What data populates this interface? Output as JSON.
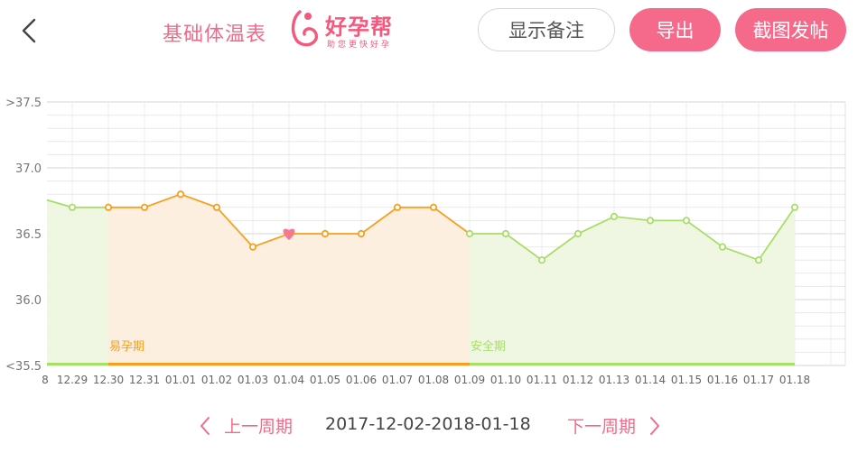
{
  "header": {
    "title": "基础体温表",
    "brand_name": "好孕帮",
    "brand_slogan": "助您更快好孕",
    "note_button": "显示备注",
    "export_button": "导出",
    "share_button": "截图发帖"
  },
  "footer": {
    "prev_label": "上一周期",
    "range_label": "2017-12-02-2018-01-18",
    "next_label": "下一周期"
  },
  "colors": {
    "accent": "#f56a8a",
    "fertile_line": "#f5a01f",
    "fertile_fill": "#fdeedd",
    "safe_line": "#a9dd6a",
    "safe_fill": "#eef7e0"
  },
  "chart_data": {
    "type": "line",
    "ylabel_ticks": [
      ">37.5",
      "37.0",
      "36.5",
      "36.0",
      "<35.5"
    ],
    "ylim": [
      35.5,
      37.5
    ],
    "x": [
      "8",
      "12.29",
      "12.30",
      "12.31",
      "01.01",
      "01.02",
      "01.03",
      "01.04",
      "01.05",
      "01.06",
      "01.07",
      "01.08",
      "01.09",
      "01.10",
      "01.11",
      "01.12",
      "01.13",
      "01.14",
      "01.15",
      "01.16",
      "01.17",
      "01.18"
    ],
    "series": [
      {
        "values": [
          36.78,
          36.7,
          36.7,
          36.7,
          36.8,
          36.7,
          36.4,
          36.5,
          36.5,
          36.5,
          36.7,
          36.7,
          36.5,
          36.5,
          36.3,
          36.5,
          36.63,
          36.6,
          36.6,
          36.4,
          36.3,
          36.7
        ]
      }
    ],
    "periods": [
      {
        "label": "",
        "start_index": 0,
        "end_index": 2,
        "kind": "safe"
      },
      {
        "label": "易孕期",
        "start_index": 2,
        "end_index": 12,
        "kind": "fertile"
      },
      {
        "label": "安全期",
        "start_index": 12,
        "end_index": 21,
        "kind": "safe"
      }
    ],
    "ovulation_index": 7,
    "grid": true
  }
}
